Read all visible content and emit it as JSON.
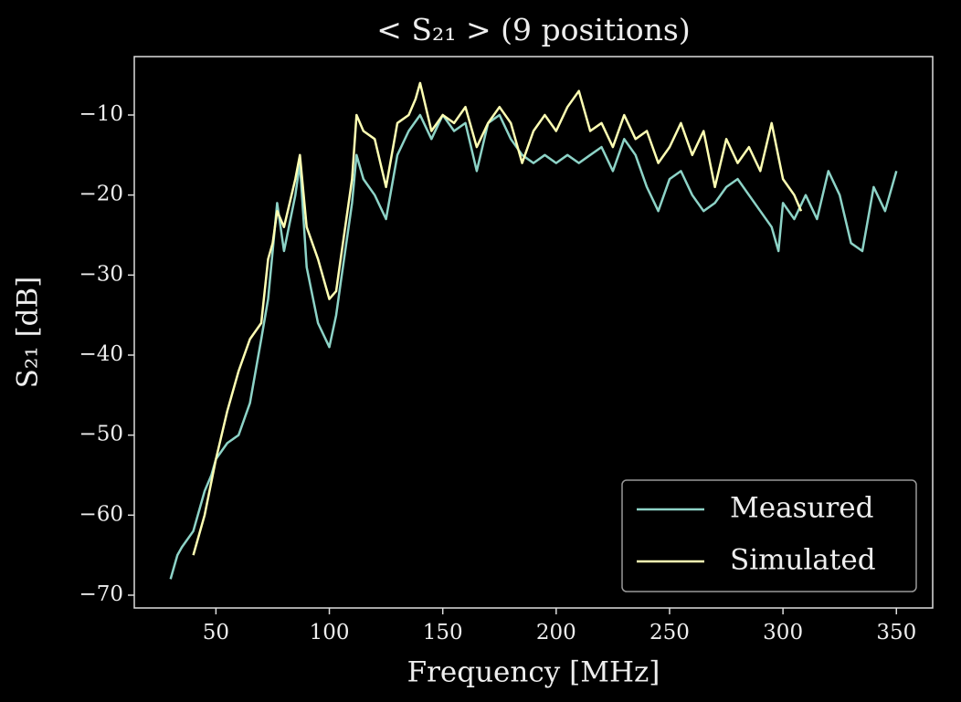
{
  "chart_data": {
    "type": "line",
    "title": "< S₂₁ >  (9 positions)",
    "x_label": "Frequency [MHz]",
    "y_label": "S₂₁ [dB]",
    "xlim": [
      14,
      366
    ],
    "ylim": [
      -71.6,
      -2.7
    ],
    "xticks": [
      50,
      100,
      150,
      200,
      250,
      300,
      350
    ],
    "yticks": [
      {
        "value": -10,
        "label": "−10"
      },
      {
        "value": -20,
        "label": "−20"
      },
      {
        "value": -30,
        "label": "−30"
      },
      {
        "value": -40,
        "label": "−40"
      },
      {
        "value": -50,
        "label": "−50"
      },
      {
        "value": -60,
        "label": "−60"
      },
      {
        "value": -70,
        "label": "−70"
      }
    ],
    "grid": false,
    "legend": "lower right",
    "series": [
      {
        "name": "Measured",
        "color": "#8dd3c7",
        "x": [
          30,
          33,
          35,
          40,
          45,
          48,
          50,
          55,
          60,
          65,
          70,
          73,
          75,
          77,
          80,
          85,
          87,
          90,
          95,
          100,
          103,
          105,
          110,
          112,
          115,
          120,
          125,
          130,
          135,
          140,
          145,
          150,
          155,
          160,
          165,
          170,
          175,
          180,
          185,
          190,
          195,
          200,
          205,
          210,
          215,
          220,
          225,
          230,
          235,
          240,
          245,
          250,
          255,
          260,
          265,
          270,
          275,
          280,
          285,
          290,
          295,
          298,
          300,
          305,
          310,
          315,
          320,
          325,
          330,
          335,
          340,
          345,
          350
        ],
        "values": [
          -68,
          -65,
          -64,
          -62,
          -57,
          -55,
          -53,
          -51,
          -50,
          -46,
          -38,
          -33,
          -27,
          -21,
          -27,
          -20,
          -16,
          -29,
          -36,
          -39,
          -35,
          -31,
          -21,
          -15,
          -18,
          -20,
          -23,
          -15,
          -12,
          -10,
          -13,
          -10,
          -12,
          -11,
          -17,
          -11,
          -10,
          -13,
          -15,
          -16,
          -15,
          -16,
          -15,
          -16,
          -15,
          -14,
          -17,
          -13,
          -15,
          -19,
          -22,
          -18,
          -17,
          -20,
          -22,
          -21,
          -19,
          -18,
          -20,
          -22,
          -24,
          -27,
          -21,
          -23,
          -20,
          -23,
          -17,
          -20,
          -26,
          -27,
          -19,
          -22,
          -17
        ]
      },
      {
        "name": "Simulated",
        "color": "#feffb3",
        "x": [
          40,
          45,
          50,
          55,
          60,
          65,
          70,
          73,
          75,
          77,
          80,
          85,
          87,
          90,
          95,
          100,
          103,
          105,
          110,
          112,
          115,
          120,
          125,
          130,
          135,
          138,
          140,
          145,
          150,
          155,
          160,
          165,
          170,
          175,
          180,
          185,
          190,
          195,
          200,
          205,
          210,
          215,
          220,
          225,
          230,
          235,
          240,
          245,
          250,
          255,
          260,
          265,
          270,
          275,
          280,
          285,
          290,
          295,
          300,
          305,
          308
        ],
        "values": [
          -65,
          -60,
          -53,
          -47,
          -42,
          -38,
          -36,
          -28,
          -26,
          -22,
          -24,
          -18,
          -15,
          -24,
          -28,
          -33,
          -32,
          -28,
          -18,
          -10,
          -12,
          -13,
          -19,
          -11,
          -10,
          -8,
          -6,
          -12,
          -10,
          -11,
          -9,
          -14,
          -11,
          -9,
          -11,
          -16,
          -12,
          -10,
          -12,
          -9,
          -7,
          -12,
          -11,
          -14,
          -10,
          -13,
          -12,
          -16,
          -14,
          -11,
          -15,
          -12,
          -19,
          -13,
          -16,
          -14,
          -17,
          -11,
          -18,
          -20,
          -22
        ]
      }
    ]
  }
}
